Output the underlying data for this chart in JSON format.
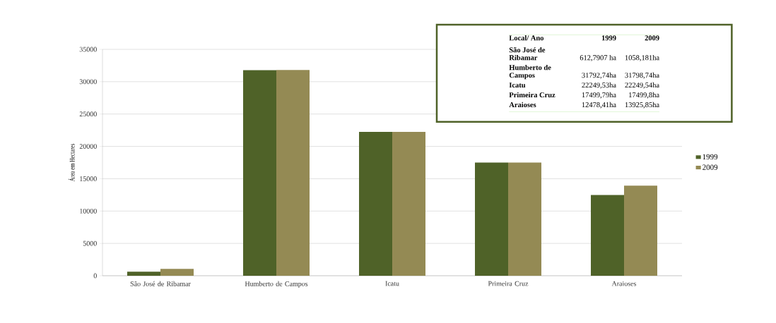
{
  "chart_data": {
    "type": "bar",
    "ylabel": "Área em Hectares",
    "categories": [
      "São José de Ribamar",
      "Humberto de Campos",
      "Icatu",
      "Primeira Cruz",
      "Araioses"
    ],
    "series": [
      {
        "name": "1999",
        "color": "#4f6228",
        "values": [
          612.7907,
          31792.74,
          22249.53,
          17499.79,
          12478.41
        ]
      },
      {
        "name": "2009",
        "color": "#948a54",
        "values": [
          1058.181,
          31798.74,
          22249.54,
          17499.8,
          13925.85
        ]
      }
    ],
    "annotations": [
      "Local/ Ano",
      "612,7907 ha",
      "1058,181ha",
      "31792,74ha",
      "31798,74ha",
      "22249,53ha",
      "22249,54ha",
      "17499,79ha",
      "17499,8ha",
      "12478,41ha",
      "13925,85ha"
    ],
    "ylim": [
      0,
      35000
    ],
    "yticks": [
      0,
      5000,
      10000,
      15000,
      20000,
      25000,
      30000,
      35000
    ],
    "grid": "y",
    "legend": "right"
  }
}
